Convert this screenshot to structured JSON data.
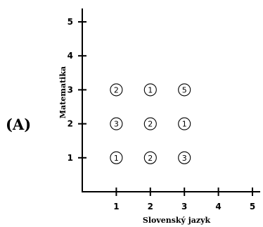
{
  "chart_data": {
    "type": "scatter",
    "panel_label": "(A)",
    "xlabel": "Slovenský jazyk",
    "ylabel": "Matematika",
    "xlim": [
      0,
      5
    ],
    "ylim": [
      0,
      5
    ],
    "x_ticks": [
      "1",
      "2",
      "3",
      "4",
      "5"
    ],
    "y_ticks": [
      "1",
      "2",
      "3",
      "4",
      "5"
    ],
    "grid": false,
    "legend": "none",
    "marker": "open-circle-with-count",
    "colors": {
      "axis": "#000000",
      "marker_stroke": "#000000",
      "marker_fill": "#ffffff"
    },
    "points": [
      {
        "x": 1,
        "y": 3,
        "count": "2"
      },
      {
        "x": 2,
        "y": 3,
        "count": "1"
      },
      {
        "x": 3,
        "y": 3,
        "count": "5"
      },
      {
        "x": 1,
        "y": 2,
        "count": "3"
      },
      {
        "x": 2,
        "y": 2,
        "count": "2"
      },
      {
        "x": 3,
        "y": 2,
        "count": "1"
      },
      {
        "x": 1,
        "y": 1,
        "count": "1"
      },
      {
        "x": 2,
        "y": 1,
        "count": "2"
      },
      {
        "x": 3,
        "y": 1,
        "count": "3"
      }
    ]
  }
}
